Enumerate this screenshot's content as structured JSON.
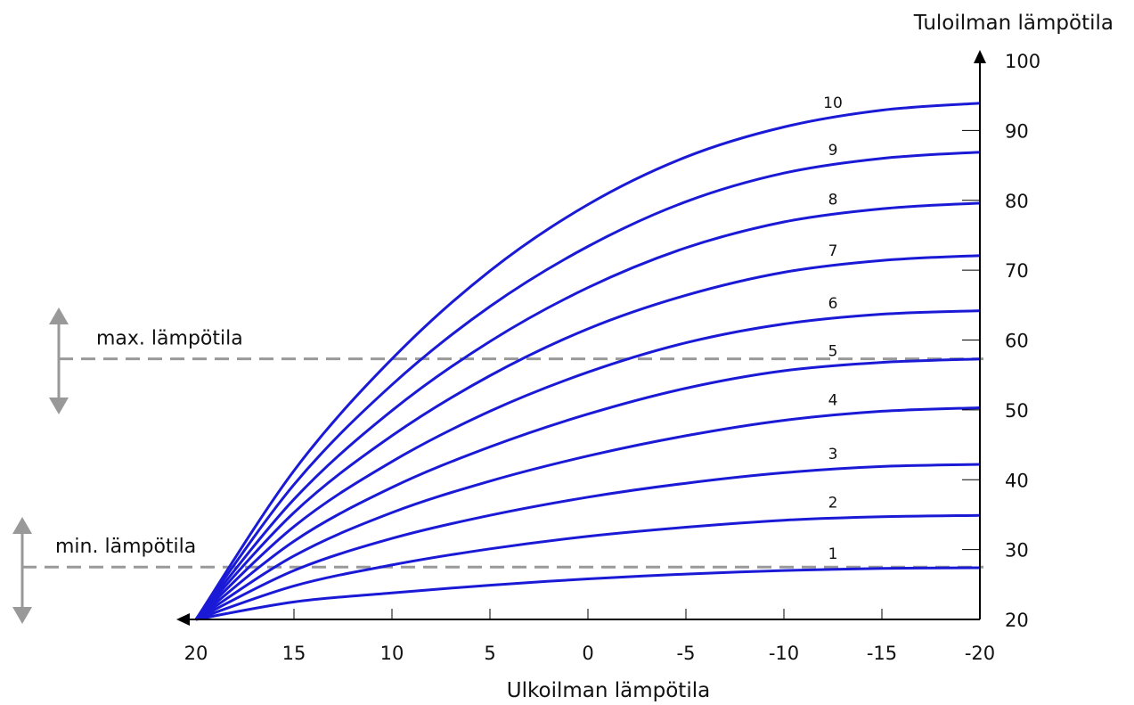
{
  "chart_data": {
    "type": "line",
    "title": "",
    "xlabel": "Ulkoilman lämpötila",
    "ylabel": "Tuloilman lämpötila",
    "x_ticks": [
      "20",
      "15",
      "10",
      "5",
      "0",
      "-5",
      "-10",
      "-15",
      "-20"
    ],
    "y_ticks": [
      "20",
      "30",
      "40",
      "50",
      "60",
      "70",
      "80",
      "90",
      "100"
    ],
    "xlim": [
      20,
      -20
    ],
    "ylim": [
      20,
      100
    ],
    "x_reversed": true,
    "grid": false,
    "x": [
      20,
      15,
      10,
      5,
      0,
      -5,
      -10,
      -15,
      -20
    ],
    "series": [
      {
        "name": "1",
        "values": [
          20,
          22.5,
          23.8,
          24.9,
          25.8,
          26.5,
          27.0,
          27.3,
          27.4
        ]
      },
      {
        "name": "2",
        "values": [
          20,
          24.8,
          27.8,
          30.1,
          31.9,
          33.2,
          34.2,
          34.7,
          34.9
        ]
      },
      {
        "name": "3",
        "values": [
          20,
          27.0,
          31.6,
          34.9,
          37.5,
          39.5,
          41.0,
          41.9,
          42.2
        ]
      },
      {
        "name": "4",
        "values": [
          20,
          29.1,
          35.3,
          39.8,
          43.4,
          46.3,
          48.5,
          49.8,
          50.3
        ]
      },
      {
        "name": "5",
        "values": [
          20,
          31.2,
          38.9,
          44.7,
          49.4,
          53.1,
          55.6,
          56.8,
          57.3
        ]
      },
      {
        "name": "6",
        "values": [
          20,
          33.3,
          42.6,
          49.8,
          55.4,
          59.6,
          62.3,
          63.7,
          64.2
        ]
      },
      {
        "name": "7",
        "values": [
          20,
          35.3,
          46.3,
          54.9,
          61.6,
          66.4,
          69.7,
          71.4,
          72.1
        ]
      },
      {
        "name": "8",
        "values": [
          20,
          37.2,
          49.9,
          59.8,
          67.5,
          73.2,
          76.9,
          78.8,
          79.6
        ]
      },
      {
        "name": "9",
        "values": [
          20,
          39.3,
          53.6,
          64.8,
          73.4,
          79.8,
          83.9,
          86.0,
          86.9
        ]
      },
      {
        "name": "10",
        "values": [
          20,
          41.3,
          57.3,
          69.9,
          79.4,
          86.2,
          90.5,
          92.9,
          93.9
        ]
      }
    ],
    "reference_lines": [
      {
        "label": "max. lämpötila",
        "y": 57.3
      },
      {
        "label": "min. lämpötila",
        "y": 27.5
      }
    ],
    "colors": {
      "curve": "#1a1ad6",
      "axis": "#000000",
      "reference": "#999999"
    }
  }
}
